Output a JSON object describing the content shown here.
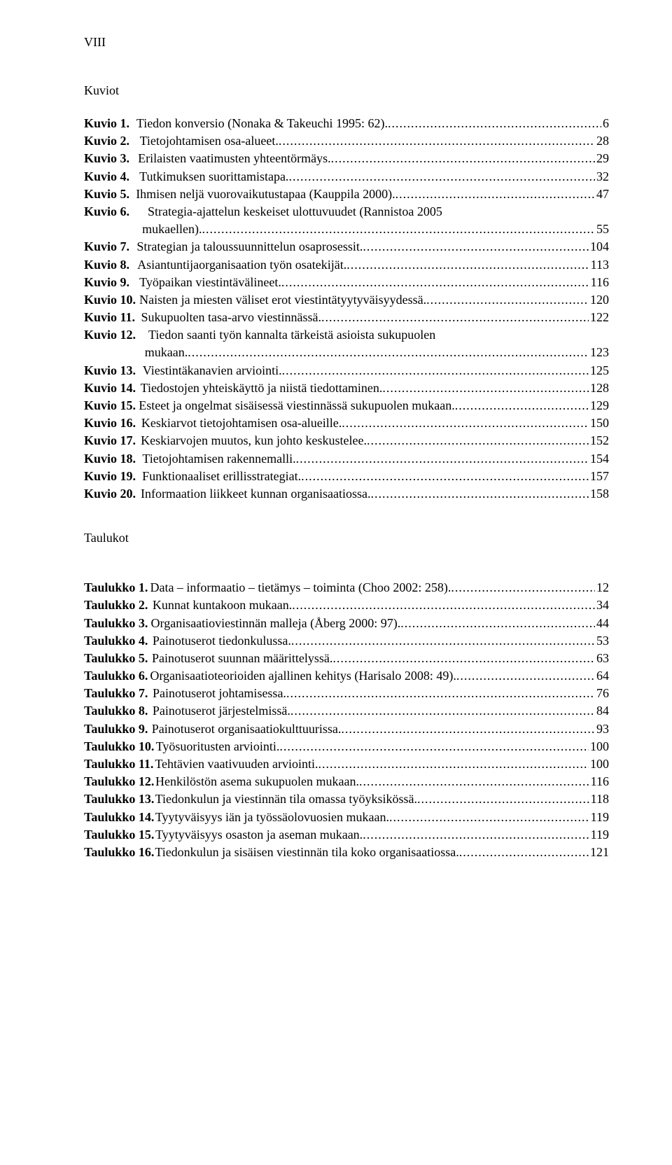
{
  "pageNumber": "VIII",
  "kuviot": {
    "heading": "Kuviot",
    "labelPrefix": "Kuvio",
    "labelGapPx": 26,
    "labelGapPx2": 18,
    "items": [
      {
        "n": "1.",
        "text": "Tiedon konversio (Nonaka & Takeuchi 1995: 62).",
        "page": "6"
      },
      {
        "n": "2.",
        "text": "Tietojohtamisen osa-alueet.",
        "page": "28"
      },
      {
        "n": "3.",
        "text": "Erilaisten vaatimusten yhteentörmäys.",
        "page": "29"
      },
      {
        "n": "4.",
        "text": "Tutkimuksen suorittamistapa.",
        "page": "32"
      },
      {
        "n": "5.",
        "text": "Ihmisen neljä vuorovaikutustapaa (Kauppila 2000).",
        "page": "47"
      },
      {
        "n": "6.",
        "text": "Strategia-ajattelun keskeiset ulottuvuudet (Rannistoa 2005",
        "page": null,
        "cont": {
          "text": "mukaellen).",
          "page": "55"
        }
      },
      {
        "n": "7.",
        "text": "Strategian ja taloussuunnittelun osaprosessit.",
        "page": "104"
      },
      {
        "n": "8.",
        "text": "Asiantuntijaorganisaation työn osatekijät.",
        "page": "113"
      },
      {
        "n": "9.",
        "text": "Työpaikan viestintävälineet.",
        "page": "116"
      },
      {
        "n": "10.",
        "text": "Naisten ja miesten väliset erot viestintätyytyväisyydessä.",
        "page": "120"
      },
      {
        "n": "11.",
        "text": "Sukupuolten tasa-arvo viestinnässä.",
        "page": "122"
      },
      {
        "n": "12.",
        "text": "Tiedon saanti työn kannalta tärkeistä asioista sukupuolen",
        "page": null,
        "cont": {
          "text": "mukaan.",
          "page": "123"
        }
      },
      {
        "n": "13.",
        "text": "Viestintäkanavien arviointi.",
        "page": "125"
      },
      {
        "n": "14.",
        "text": "Tiedostojen yhteiskäyttö ja niistä tiedottaminen.",
        "page": "128"
      },
      {
        "n": "15.",
        "text": "Esteet ja ongelmat sisäisessä viestinnässä sukupuolen mukaan.",
        "page": "129"
      },
      {
        "n": "16.",
        "text": "Keskiarvot tietojohtamisen osa-alueille.",
        "page": "150"
      },
      {
        "n": "17.",
        "text": "Keskiarvojen muutos, kun johto keskustelee.",
        "page": "152"
      },
      {
        "n": "18.",
        "text": "Tietojohtamisen rakennemalli.",
        "page": "154"
      },
      {
        "n": "19.",
        "text": "Funktionaaliset erillisstrategiat.",
        "page": "157"
      },
      {
        "n": "20.",
        "text": "Informaation liikkeet kunnan organisaatiossa.",
        "page": "158"
      }
    ]
  },
  "taulukot": {
    "heading": "Taulukot",
    "labelPrefix": "Taulukko",
    "labelGapPx": 12,
    "labelGapPx2": 4,
    "items": [
      {
        "n": "1.",
        "text": "Data – informaatio – tietämys – toiminta (Choo 2002: 258).",
        "page": "12"
      },
      {
        "n": "2.",
        "text": "Kunnat kuntakoon mukaan.",
        "page": "34"
      },
      {
        "n": "3.",
        "text": "Organisaatioviestinnän malleja (Åberg 2000: 97).",
        "page": "44"
      },
      {
        "n": "4.",
        "text": "Painotuserot tiedonkulussa.",
        "page": "53"
      },
      {
        "n": "5.",
        "text": "Painotuserot suunnan määrittelyssä.",
        "page": "63"
      },
      {
        "n": "6.",
        "text": "Organisaatioteorioiden ajallinen kehitys (Harisalo 2008: 49).",
        "page": "64"
      },
      {
        "n": "7.",
        "text": "Painotuserot johtamisessa.",
        "page": "76"
      },
      {
        "n": "8.",
        "text": "Painotuserot järjestelmissä.",
        "page": "84"
      },
      {
        "n": "9.",
        "text": "Painotuserot organisaatiokulttuurissa.",
        "page": "93"
      },
      {
        "n": "10.",
        "text": "Työsuoritusten arviointi.",
        "page": "100"
      },
      {
        "n": "11.",
        "text": "Tehtävien vaativuuden arviointi.",
        "page": "100"
      },
      {
        "n": "12.",
        "text": "Henkilöstön asema sukupuolen mukaan.",
        "page": "116"
      },
      {
        "n": "13.",
        "text": "Tiedonkulun ja viestinnän tila omassa työyksikössä.",
        "page": "118"
      },
      {
        "n": "14.",
        "text": "Tyytyväisyys iän ja työssäolovuosien mukaan.",
        "page": "119"
      },
      {
        "n": "15.",
        "text": "Tyytyväisyys osaston ja aseman mukaan.",
        "page": "119"
      },
      {
        "n": "16.",
        "text": "Tiedonkulun ja sisäisen viestinnän tila koko organisaatiossa.",
        "page": "121"
      }
    ]
  },
  "dots": "..................................................................................................................................................."
}
